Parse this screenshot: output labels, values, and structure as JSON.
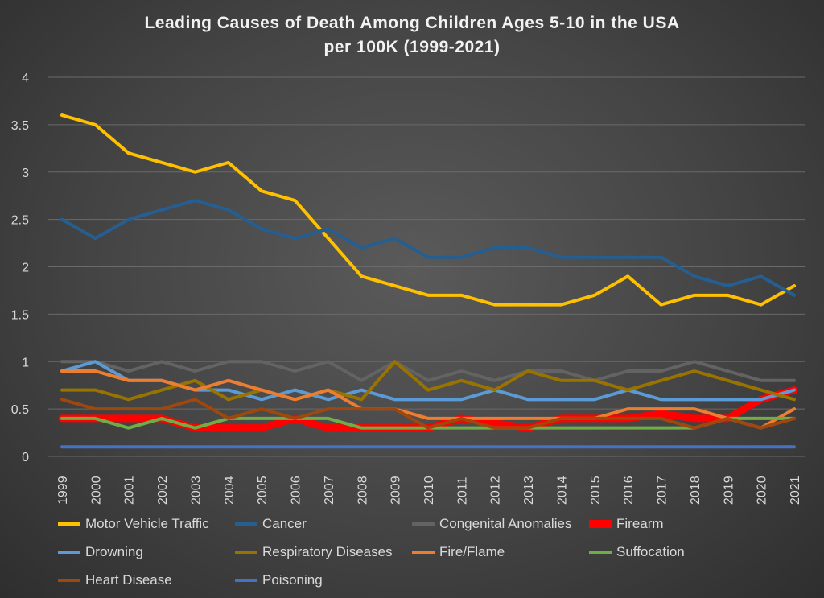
{
  "chart_data": {
    "type": "line",
    "title": "Leading Causes of Death Among Children Ages 5-10 in the USA per 100K (1999-2021)",
    "title_lines": [
      "Leading Causes of Death Among Children Ages 5-10 in the USA",
      "per 100K (1999-2021)"
    ],
    "categories": [
      "1999",
      "2000",
      "2001",
      "2002",
      "2003",
      "2004",
      "2005",
      "2006",
      "2007",
      "2008",
      "2009",
      "2010",
      "2011",
      "2012",
      "2013",
      "2014",
      "2015",
      "2016",
      "2017",
      "2018",
      "2019",
      "2020",
      "2021"
    ],
    "ylim": [
      0,
      4
    ],
    "yticks": [
      "0",
      "0.5",
      "1",
      "1.5",
      "2",
      "2.5",
      "3",
      "3.5",
      "4"
    ],
    "grid": true,
    "legend": "bottom",
    "series": [
      {
        "name": "Motor Vehicle Traffic",
        "color": "#ffc000",
        "values": [
          3.6,
          3.5,
          3.2,
          3.1,
          3.0,
          3.1,
          2.8,
          2.7,
          2.3,
          1.9,
          1.8,
          1.7,
          1.7,
          1.6,
          1.6,
          1.6,
          1.7,
          1.9,
          1.6,
          1.7,
          1.7,
          1.6,
          1.8
        ]
      },
      {
        "name": "Cancer",
        "color": "#255e91",
        "values": [
          2.5,
          2.3,
          2.5,
          2.6,
          2.7,
          2.6,
          2.4,
          2.3,
          2.4,
          2.2,
          2.3,
          2.1,
          2.1,
          2.2,
          2.2,
          2.1,
          2.1,
          2.1,
          2.1,
          1.9,
          1.8,
          1.9,
          1.7
        ]
      },
      {
        "name": "Congenital Anomalies",
        "color": "#636363",
        "values": [
          1.0,
          1.0,
          0.9,
          1.0,
          0.9,
          1.0,
          1.0,
          0.9,
          1.0,
          0.8,
          1.0,
          0.8,
          0.9,
          0.8,
          0.9,
          0.9,
          0.8,
          0.9,
          0.9,
          1.0,
          0.9,
          0.8,
          0.8
        ]
      },
      {
        "name": "Firearm",
        "color": "#ff0000",
        "values": [
          0.4,
          0.4,
          0.4,
          0.4,
          0.3,
          0.3,
          0.3,
          0.4,
          0.3,
          0.3,
          0.3,
          0.3,
          0.4,
          0.35,
          0.3,
          0.4,
          0.4,
          0.4,
          0.45,
          0.4,
          0.4,
          0.6,
          0.7
        ]
      },
      {
        "name": "Drowning",
        "color": "#5b9bd5",
        "values": [
          0.9,
          1.0,
          0.8,
          0.8,
          0.7,
          0.7,
          0.6,
          0.7,
          0.6,
          0.7,
          0.6,
          0.6,
          0.6,
          0.7,
          0.6,
          0.6,
          0.6,
          0.7,
          0.6,
          0.6,
          0.6,
          0.6,
          0.7
        ]
      },
      {
        "name": "Respiratory Diseases",
        "color": "#997300",
        "values": [
          0.7,
          0.7,
          0.6,
          0.7,
          0.8,
          0.6,
          0.7,
          0.6,
          0.7,
          0.6,
          1.0,
          0.7,
          0.8,
          0.7,
          0.9,
          0.8,
          0.8,
          0.7,
          0.8,
          0.9,
          0.8,
          0.7,
          0.6
        ]
      },
      {
        "name": "Fire/Flame",
        "color": "#ed7d31",
        "values": [
          0.9,
          0.9,
          0.8,
          0.8,
          0.7,
          0.8,
          0.7,
          0.6,
          0.7,
          0.5,
          0.5,
          0.4,
          0.4,
          0.4,
          0.4,
          0.4,
          0.4,
          0.5,
          0.5,
          0.5,
          0.4,
          0.3,
          0.5
        ]
      },
      {
        "name": "Suffocation",
        "color": "#70ad47",
        "values": [
          0.4,
          0.4,
          0.3,
          0.4,
          0.3,
          0.4,
          0.4,
          0.4,
          0.4,
          0.3,
          0.3,
          0.3,
          0.3,
          0.3,
          0.3,
          0.3,
          0.3,
          0.3,
          0.3,
          0.3,
          0.4,
          0.4,
          0.4
        ]
      },
      {
        "name": "Heart Disease",
        "color": "#9e480e",
        "values": [
          0.6,
          0.5,
          0.5,
          0.5,
          0.6,
          0.4,
          0.5,
          0.4,
          0.5,
          0.5,
          0.5,
          0.3,
          0.4,
          0.3,
          0.3,
          0.4,
          0.4,
          0.4,
          0.4,
          0.3,
          0.4,
          0.3,
          0.4
        ]
      },
      {
        "name": "Poisoning",
        "color": "#4472c4",
        "values": [
          0.1,
          0.1,
          0.1,
          0.1,
          0.1,
          0.1,
          0.1,
          0.1,
          0.1,
          0.1,
          0.1,
          0.1,
          0.1,
          0.1,
          0.1,
          0.1,
          0.1,
          0.1,
          0.1,
          0.1,
          0.1,
          0.1,
          0.1
        ]
      }
    ]
  }
}
